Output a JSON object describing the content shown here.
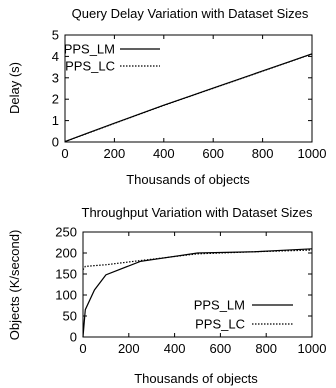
{
  "chart_data": [
    {
      "type": "line",
      "title": "Query Delay Variation with Dataset Sizes",
      "xlabel": "Thousands of objects",
      "ylabel": "Delay (s)",
      "xlim": [
        0,
        1000
      ],
      "ylim": [
        0,
        5
      ],
      "xticks": [
        0,
        200,
        400,
        600,
        800,
        1000
      ],
      "yticks": [
        0,
        1,
        2,
        3,
        4,
        5
      ],
      "grid": false,
      "legend_position": "top-left",
      "series": [
        {
          "name": "PPS_LM",
          "style": "solid",
          "color": "#000000",
          "x": [
            0,
            100,
            200,
            300,
            400,
            500,
            600,
            700,
            800,
            900,
            1000
          ],
          "y": [
            0.02,
            0.45,
            0.88,
            1.3,
            1.72,
            2.12,
            2.52,
            2.92,
            3.32,
            3.72,
            4.12
          ]
        },
        {
          "name": "PPS_LC",
          "style": "dotted",
          "color": "#000000",
          "x": [
            0,
            100,
            200,
            300,
            400,
            500,
            600,
            700,
            800,
            900,
            1000
          ],
          "y": [
            0.02,
            0.44,
            0.87,
            1.29,
            1.71,
            2.11,
            2.51,
            2.91,
            3.31,
            3.71,
            4.11
          ]
        }
      ]
    },
    {
      "type": "line",
      "title": "Throughput Variation with Dataset Sizes",
      "xlabel": "Thousands of objects",
      "ylabel": "Objects (K/second)",
      "xlim": [
        0,
        1000
      ],
      "ylim": [
        0,
        250
      ],
      "xticks": [
        0,
        200,
        400,
        600,
        800,
        1000
      ],
      "yticks": [
        0,
        50,
        100,
        150,
        200,
        250
      ],
      "grid": false,
      "legend_position": "bottom-right",
      "series": [
        {
          "name": "PPS_LM",
          "style": "solid",
          "color": "#000000",
          "x": [
            0,
            10,
            50,
            100,
            250,
            500,
            750,
            1000
          ],
          "y": [
            0,
            65,
            112,
            148,
            180,
            200,
            203,
            210
          ]
        },
        {
          "name": "PPS_LC",
          "style": "dotted",
          "color": "#000000",
          "x": [
            0,
            10,
            50,
            100,
            250,
            500,
            750,
            1000
          ],
          "y": [
            160,
            168,
            170,
            172,
            182,
            198,
            203,
            207
          ]
        }
      ]
    }
  ]
}
